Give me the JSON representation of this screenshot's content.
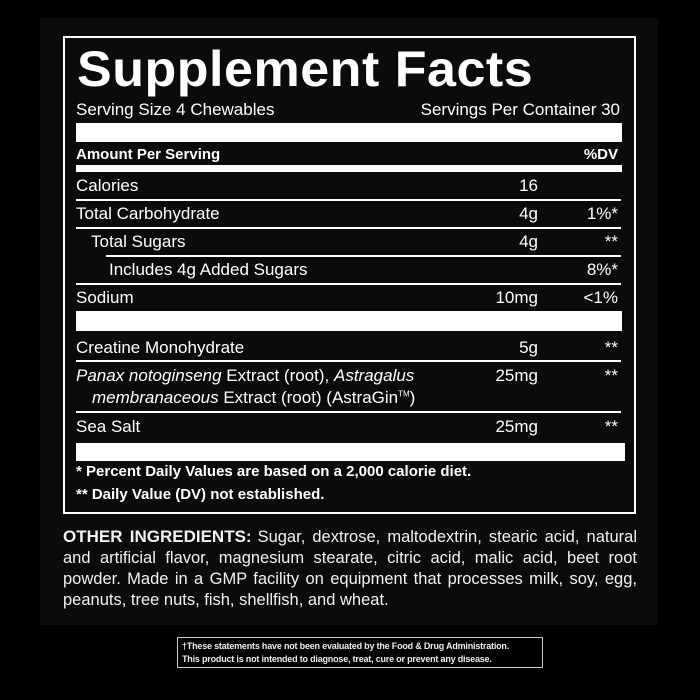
{
  "title": "Supplement Facts",
  "serving_size": "Serving Size 4 Chewables",
  "servings_per_container": "Servings Per Container 30",
  "header": {
    "amount": "Amount Per Serving",
    "dv": "%DV"
  },
  "rows": [
    {
      "label": "Calories",
      "amount": "16",
      "dv": ""
    },
    {
      "label": "Total Carbohydrate",
      "amount": "4g",
      "dv": "1%*"
    },
    {
      "label": "Total Sugars",
      "amount": "4g",
      "dv": "**"
    },
    {
      "label": "Includes 4g Added Sugars",
      "amount": "",
      "dv": "8%*"
    },
    {
      "label": "Sodium",
      "amount": "10mg",
      "dv": "<1%"
    },
    {
      "label": "Creatine Monohydrate",
      "amount": "5g",
      "dv": "**"
    },
    {
      "label_parts": [
        "Panax notoginseng",
        " Extract (root), ",
        "Astragalus",
        "membranaceous",
        " Extract (root) (AstraGin",
        "TM",
        ")"
      ],
      "amount": "25mg",
      "dv": "**"
    },
    {
      "label": "Sea Salt",
      "amount": "25mg",
      "dv": "**"
    }
  ],
  "footnotes": [
    "* Percent Daily Values are based on a 2,000 calorie diet.",
    "** Daily Value (DV) not established."
  ],
  "other_ingredients": {
    "heading": "OTHER INGREDIENTS:",
    "text": "Sugar, dextrose, maltodextrin, stearic acid, natural and artificial flavor, magnesium stearate, citric acid, malic acid, beet root powder. Made in a GMP facility on equipment that processes milk, soy, egg, peanuts, tree nuts, fish, shellfish, and wheat."
  },
  "disclaimer": [
    "†These statements have not been evaluated by the Food & Drug Administration.",
    "This product is not intended to diagnose, treat, cure or prevent any disease."
  ]
}
